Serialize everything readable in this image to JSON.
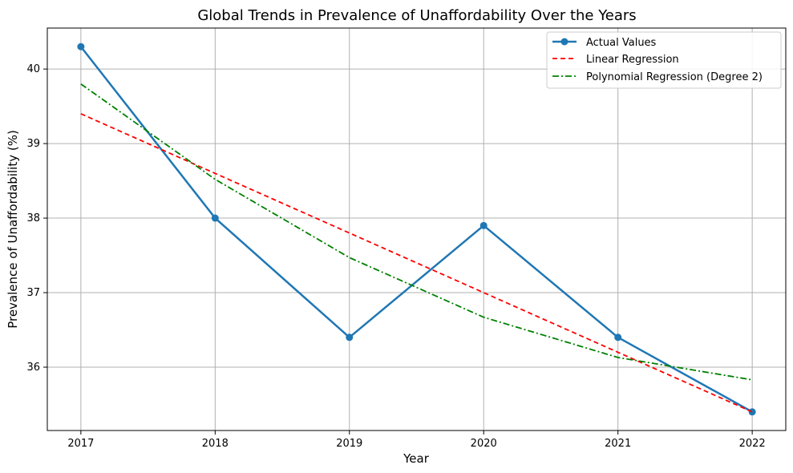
{
  "chart_data": {
    "type": "line",
    "title": "Global Trends in Prevalence of Unaffordability Over the Years",
    "xlabel": "Year",
    "ylabel": "Prevalence of Unaffordability (%)",
    "x": [
      2017,
      2018,
      2019,
      2020,
      2021,
      2022
    ],
    "xlim": [
      2016.75,
      2022.25
    ],
    "ylim": [
      35.15,
      40.55
    ],
    "x_ticks": [
      2017,
      2018,
      2019,
      2020,
      2021,
      2022
    ],
    "y_ticks": [
      36,
      37,
      38,
      39,
      40
    ],
    "grid": true,
    "legend_position": "top-right",
    "series": [
      {
        "name": "Actual Values",
        "values": [
          40.3,
          38.0,
          36.4,
          37.9,
          36.4,
          35.4
        ],
        "color": "#1f77b4",
        "style": "solid",
        "marker": "circle"
      },
      {
        "name": "Linear Regression",
        "values": [
          39.4,
          38.6,
          37.8,
          37.0,
          36.2,
          35.4
        ],
        "color": "#ff0000",
        "style": "dashed",
        "marker": "none"
      },
      {
        "name": "Polynomial Regression (Degree 2)",
        "values": [
          39.8,
          38.52,
          37.47,
          36.67,
          36.13,
          35.83
        ],
        "color": "#008000",
        "style": "dashdot",
        "marker": "none"
      }
    ]
  }
}
